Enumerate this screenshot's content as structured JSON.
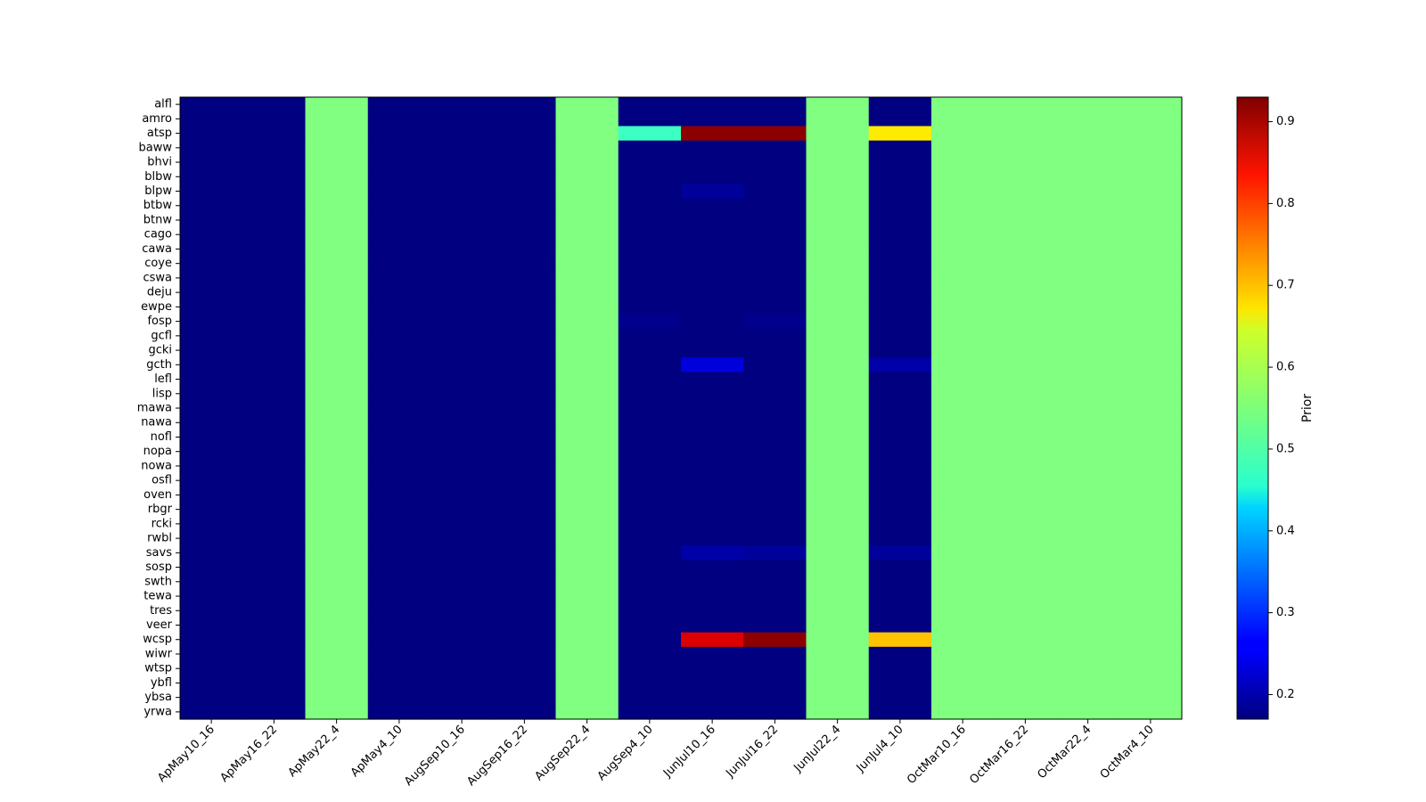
{
  "chart_data": {
    "type": "heatmap",
    "title": "",
    "xlabel": "",
    "ylabel": "",
    "colormap": "jet",
    "x_categories": [
      "ApMay10_16",
      "ApMay16_22",
      "ApMay22_4",
      "ApMay4_10",
      "AugSep10_16",
      "AugSep16_22",
      "AugSep22_4",
      "AugSep4_10",
      "JunJul10_16",
      "JunJul16_22",
      "JunJul22_4",
      "JunJul4_10",
      "OctMar10_16",
      "OctMar16_22",
      "OctMar22_4",
      "OctMar4_10"
    ],
    "y_categories": [
      "alfl",
      "amro",
      "atsp",
      "baww",
      "bhvi",
      "blbw",
      "blpw",
      "btbw",
      "btnw",
      "cago",
      "cawa",
      "coye",
      "cswa",
      "deju",
      "ewpe",
      "fosp",
      "gcfl",
      "gcki",
      "gcth",
      "lefl",
      "lisp",
      "mawa",
      "nawa",
      "nofl",
      "nopa",
      "nowa",
      "osfl",
      "oven",
      "rbgr",
      "rcki",
      "rwbl",
      "savs",
      "sosp",
      "swth",
      "tewa",
      "tres",
      "veer",
      "wcsp",
      "wiwr",
      "wtsp",
      "ybfl",
      "ybsa",
      "yrwa"
    ],
    "default_low_value": 0.17,
    "uniform_value": 0.55,
    "uniform_columns": [
      "ApMay22_4",
      "AugSep22_4",
      "JunJul22_4",
      "OctMar10_16",
      "OctMar16_22",
      "OctMar22_4",
      "OctMar4_10"
    ],
    "cells": [
      {
        "species": "atsp",
        "period": "AugSep4_10",
        "value": 0.5
      },
      {
        "species": "atsp",
        "period": "JunJul10_16",
        "value": 0.92
      },
      {
        "species": "atsp",
        "period": "JunJul16_22",
        "value": 0.92
      },
      {
        "species": "atsp",
        "period": "JunJul4_10",
        "value": 0.66
      },
      {
        "species": "blpw",
        "period": "JunJul10_16",
        "value": 0.19
      },
      {
        "species": "fosp",
        "period": "AugSep4_10",
        "value": 0.18
      },
      {
        "species": "fosp",
        "period": "JunJul16_22",
        "value": 0.18
      },
      {
        "species": "gcth",
        "period": "JunJul10_16",
        "value": 0.24
      },
      {
        "species": "gcth",
        "period": "JunJul4_10",
        "value": 0.2
      },
      {
        "species": "savs",
        "period": "JunJul10_16",
        "value": 0.2
      },
      {
        "species": "savs",
        "period": "JunJul16_22",
        "value": 0.19
      },
      {
        "species": "savs",
        "period": "JunJul4_10",
        "value": 0.19
      },
      {
        "species": "wcsp",
        "period": "JunJul10_16",
        "value": 0.86
      },
      {
        "species": "wcsp",
        "period": "JunJul16_22",
        "value": 0.92
      },
      {
        "species": "wcsp",
        "period": "JunJul4_10",
        "value": 0.69
      }
    ],
    "colorbar": {
      "label": "Prior",
      "min": 0.17,
      "max": 0.93,
      "ticks": [
        0.2,
        0.3,
        0.4,
        0.5,
        0.6,
        0.7,
        0.8,
        0.9
      ],
      "tick_labels": [
        "0.2",
        "0.3",
        "0.4",
        "0.5",
        "0.6",
        "0.7",
        "0.8",
        "0.9"
      ]
    }
  }
}
